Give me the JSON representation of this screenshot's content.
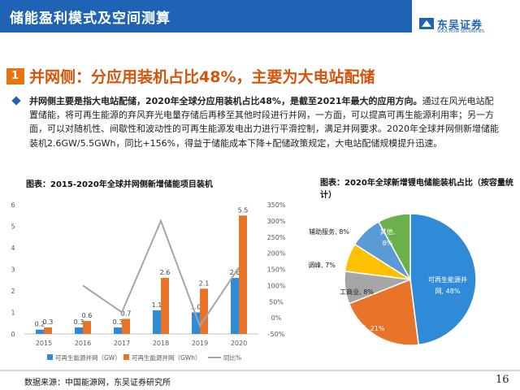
{
  "header": {
    "title": "储能盈利模式及空间测算"
  },
  "logo": {
    "name_cn": "东吴证券",
    "name_en": "SOOCHOW SECURITIES"
  },
  "section": {
    "number": "1",
    "title": "并网侧：分应用装机占比48%，主要为大电站配储"
  },
  "paragraph": {
    "lead": "并网侧主要是指大电站配储，2020年全球分应用装机占比48%，是截至2021年最大的应用方向。",
    "body": "通过在风光电站配置储能，将可再生能源的弃风弃光电量存储后再移至其他时段进行并网，一方面，可以提高可再生能源利用率；另一方面，可以对随机性、间歇性和波动性的可再生能源发电出力进行平滑控制，满足并网要求。2020年全球并网侧新增储能装机2.6GW/5.5GWh，同比+156%，得益于储能成本下降+配储政策规定，大电站配储规模提升迅速。"
  },
  "chart1_caption": "图表：2015-2020年全球并网侧新增储能项目装机",
  "chart2_caption": "图表：2020年全球新增锂电储能装机占比（按容量统计）",
  "footer": {
    "source": "数据来源：中国能源网，东吴证券研究所",
    "page": "16"
  },
  "chart_data": [
    {
      "type": "bar",
      "categories": [
        "2015",
        "2016",
        "2017",
        "2018",
        "2019",
        "2020"
      ],
      "series": [
        {
          "name": "可再生能源并网（GW）",
          "values": [
            0.2,
            0.3,
            0.3,
            1.1,
            1.0,
            2.6
          ],
          "color": "#2f8bd8",
          "axis": "left"
        },
        {
          "name": "可再生能源并网（GWh）",
          "values": [
            0.3,
            0.6,
            0.7,
            2.6,
            2.1,
            5.5
          ],
          "color": "#e8742a",
          "axis": "left"
        },
        {
          "name": "同比%",
          "type": "line",
          "values": [
            null,
            100,
            17,
            300,
            -25,
            156
          ],
          "color": "#a6a6a6",
          "axis": "right"
        }
      ],
      "bar_labels": [
        [
          "0.2",
          "0.3",
          "0.3",
          "1.1",
          "1.0",
          "2.6"
        ],
        [
          "0.3",
          "0.6",
          "0.7",
          "2.6",
          "2.1",
          "5.5"
        ]
      ],
      "left_ticks": [
        "0",
        "1",
        "2",
        "3",
        "4",
        "5",
        "6"
      ],
      "right_ticks": [
        "-50%",
        "0%",
        "50%",
        "100%",
        "150%",
        "200%",
        "250%",
        "300%",
        "350%"
      ],
      "ylim": [
        0,
        6
      ],
      "y2lim": [
        -50,
        350
      ],
      "grid": false,
      "legend_position": "bottom"
    },
    {
      "type": "pie",
      "labels": [
        "可再生能源并网, 48%",
        "户用, 21%",
        "工商业, 8%",
        "调峰, 7%",
        "辅助服务, 8%",
        "其他, 8%"
      ],
      "values": [
        48,
        21,
        8,
        7,
        8,
        8
      ],
      "colors": [
        "#2f8bd8",
        "#e8742a",
        "#a6a6a6",
        "#ffc000",
        "#5b9bd5",
        "#6ab04c"
      ]
    }
  ]
}
